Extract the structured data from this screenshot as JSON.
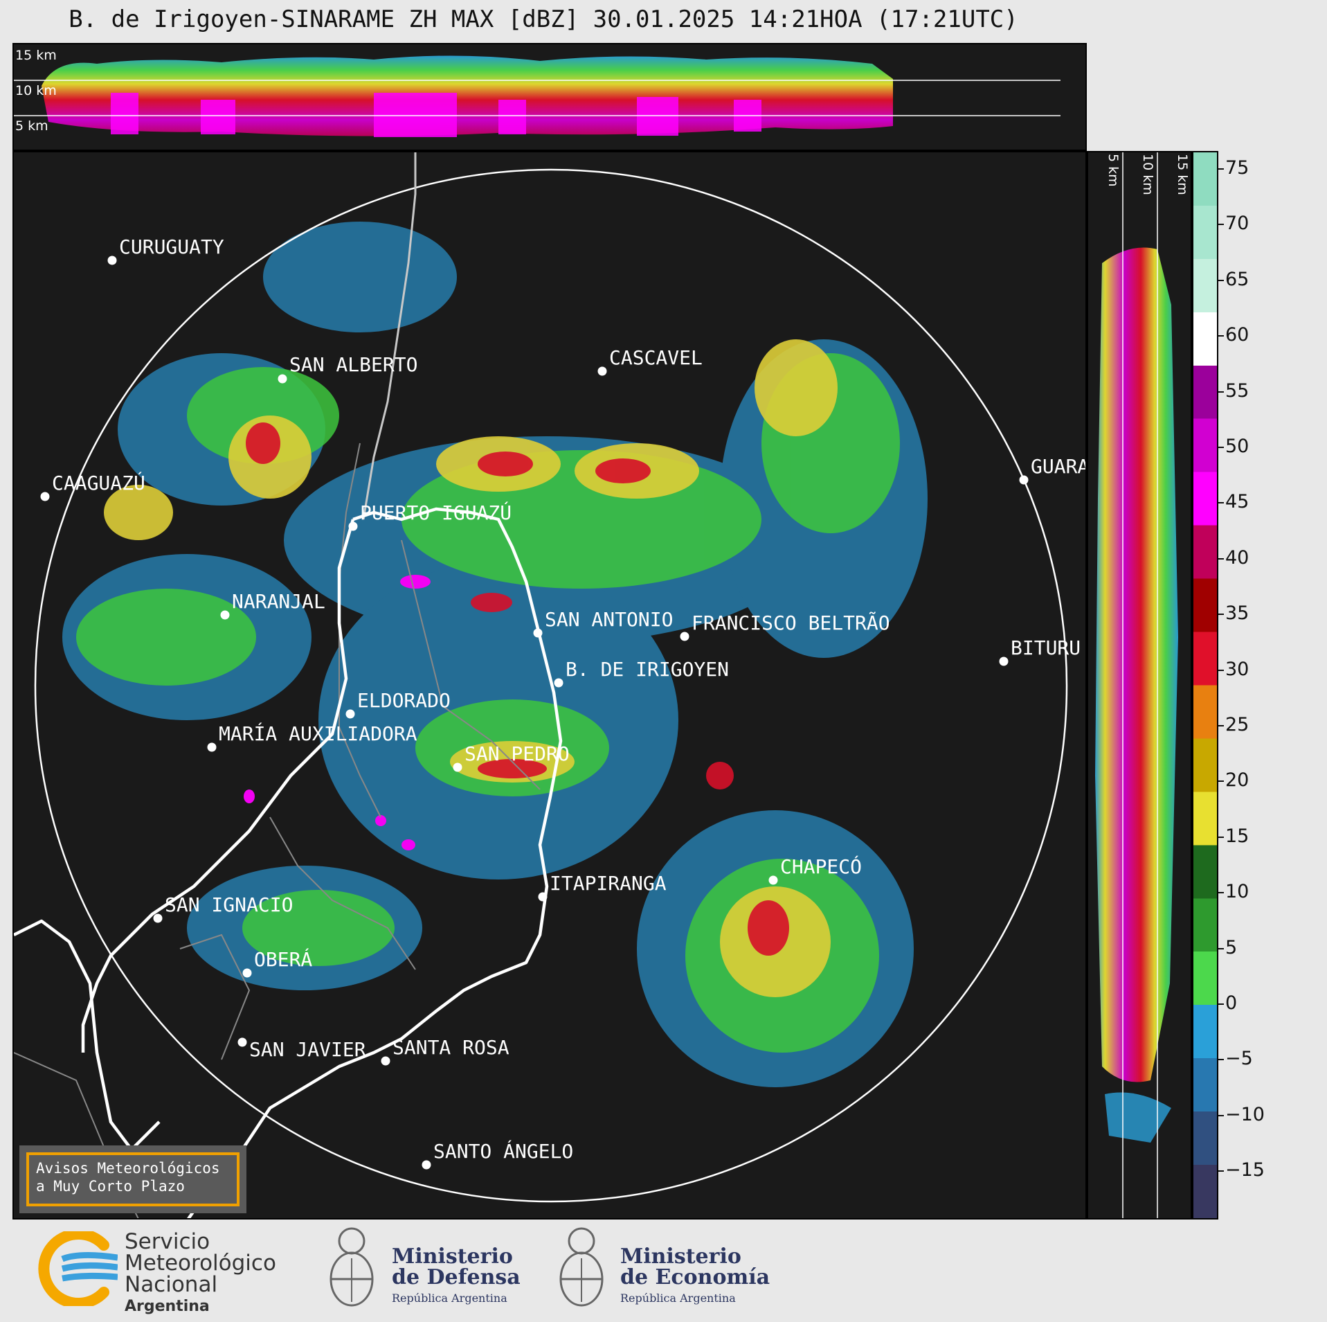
{
  "title": "B. de Irigoyen-SINARAME ZH MAX [dBZ] 30.01.2025 14:21HOA (17:21UTC)",
  "top_panel": {
    "height_labels": [
      "15 km",
      "10 km",
      "5 km"
    ]
  },
  "side_panel": {
    "height_labels": [
      "5 km",
      "10 km",
      "15 km"
    ]
  },
  "cities": [
    {
      "name": "CURUGUATY"
    },
    {
      "name": "SAN ALBERTO"
    },
    {
      "name": "CASCAVEL"
    },
    {
      "name": "CAAGUAZÚ"
    },
    {
      "name": "GUARA"
    },
    {
      "name": "PUERTO IGUAZÚ"
    },
    {
      "name": "NARANJAL"
    },
    {
      "name": "SAN ANTONIO"
    },
    {
      "name": "FRANCISCO BELTRÃO"
    },
    {
      "name": "BITURU"
    },
    {
      "name": "B. DE IRIGOYEN"
    },
    {
      "name": "ELDORADO"
    },
    {
      "name": "MARÍA AUXILIADORA"
    },
    {
      "name": "SAN PEDRO"
    },
    {
      "name": "CHAPECÓ"
    },
    {
      "name": "ITAPIRANGA"
    },
    {
      "name": "SAN IGNACIO"
    },
    {
      "name": "OBERÁ"
    },
    {
      "name": "SAN JAVIER"
    },
    {
      "name": "SANTA ROSA"
    },
    {
      "name": "SANTO ÁNGELO"
    }
  ],
  "colorbar": {
    "unit": "dBZ",
    "ticks": [
      "75",
      "70",
      "65",
      "60",
      "55",
      "50",
      "45",
      "40",
      "35",
      "30",
      "25",
      "20",
      "15",
      "10",
      "5",
      "0",
      "−5",
      "−10",
      "−15"
    ],
    "colors": [
      "#8fdcc0",
      "#a8e6cf",
      "#c5f0de",
      "#ffffff",
      "#9b009b",
      "#d100d1",
      "#ff00ff",
      "#c0005a",
      "#a00000",
      "#e0102a",
      "#e88010",
      "#c8a800",
      "#e8e030",
      "#1e6a1e",
      "#2e9a2e",
      "#4cd84c",
      "#2aa0d8",
      "#2878b0",
      "#305080",
      "#383860"
    ]
  },
  "alerts": {
    "line1": "Avisos Meteorológicos",
    "line2": "a Muy Corto Plazo"
  },
  "footer": {
    "smn": {
      "line1": "Servicio",
      "line2": "Meteorológico",
      "line3": "Nacional",
      "country": "Argentina"
    },
    "defensa": {
      "line1": "Ministerio",
      "line2": "de Defensa",
      "sub": "República Argentina"
    },
    "economia": {
      "line1": "Ministerio",
      "line2": "de Economía",
      "sub": "República Argentina"
    }
  }
}
